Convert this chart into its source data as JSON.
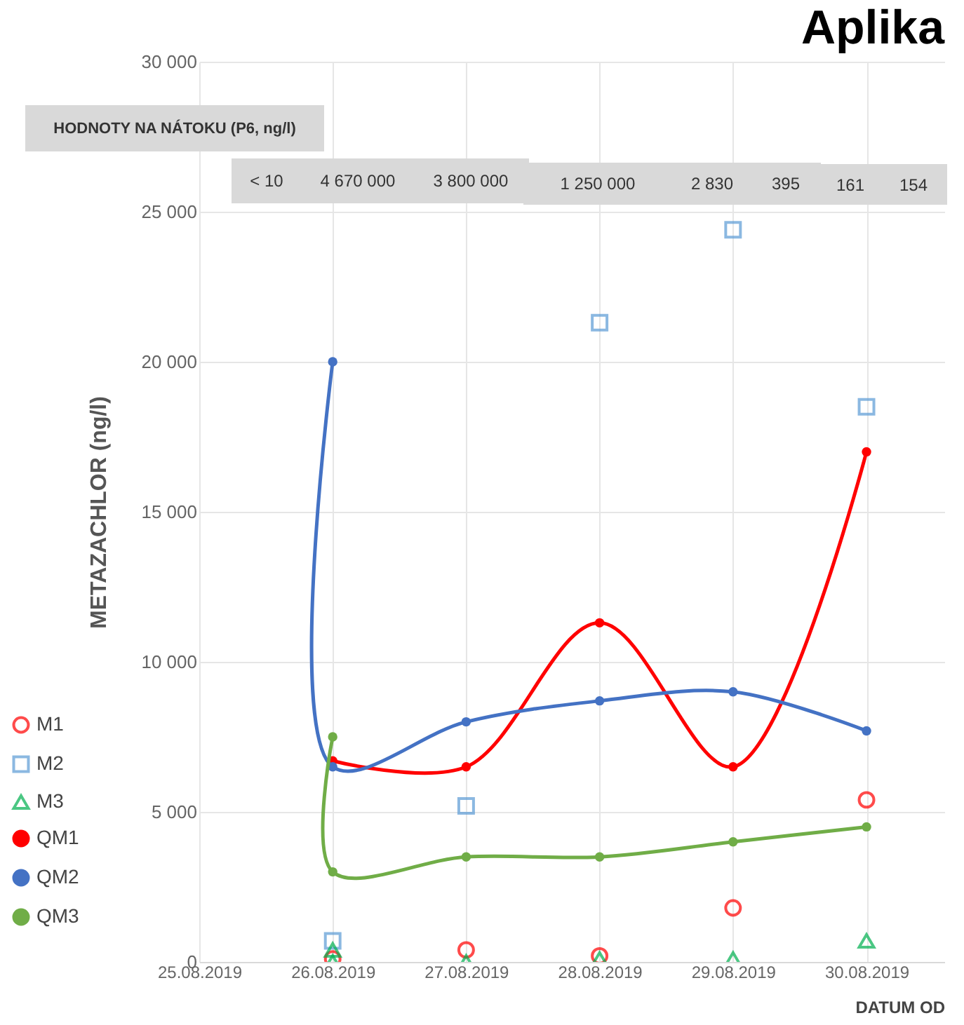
{
  "chart_data": {
    "type": "line",
    "title": "Aplika",
    "xlabel": "DATUM OD",
    "ylabel": "METAZACHLOR (ng/l)",
    "annotations": [
      "HODNOTY NA NÁTOKU (P6, ng/l)",
      "< 10",
      "4 670 000",
      "3 800 000",
      "1 250 000",
      "2 830",
      "395",
      "161",
      "154"
    ],
    "xlim": [
      "2019-08-25",
      "2019-08-30T14:00"
    ],
    "xticks": [
      {
        "value": "2019-08-25",
        "label": "25.08.2019"
      },
      {
        "value": "2019-08-26",
        "label": "26.08.2019"
      },
      {
        "value": "2019-08-27",
        "label": "27.08.2019"
      },
      {
        "value": "2019-08-28",
        "label": "28.08.2019"
      },
      {
        "value": "2019-08-29",
        "label": "29.08.2019"
      },
      {
        "value": "2019-08-30",
        "label": "30.08.2019"
      }
    ],
    "ylim": [
      0,
      30000
    ],
    "yticks": [
      {
        "value": 0,
        "label": "0"
      },
      {
        "value": 5000,
        "label": "5 000"
      },
      {
        "value": 10000,
        "label": "10 000"
      },
      {
        "value": 15000,
        "label": "15 000"
      },
      {
        "value": 20000,
        "label": "20 000"
      },
      {
        "value": 25000,
        "label": "25 000"
      },
      {
        "value": 30000,
        "label": "30 000"
      }
    ],
    "grid": true,
    "legend": "left",
    "series": [
      {
        "name": "M1",
        "type": "scatter",
        "marker": "circle",
        "color": "#ff0000",
        "x": [
          "2019-08-26",
          "2019-08-27",
          "2019-08-28",
          "2019-08-29",
          "2019-08-30"
        ],
        "values": [
          100,
          400,
          200,
          1800,
          5400
        ]
      },
      {
        "name": "M2",
        "type": "scatter",
        "marker": "square",
        "color": "#5b9bd5",
        "x": [
          "2019-08-26",
          "2019-08-27",
          "2019-08-28",
          "2019-08-29",
          "2019-08-30"
        ],
        "values": [
          700,
          5200,
          21300,
          24400,
          18500
        ]
      },
      {
        "name": "M3",
        "type": "scatter",
        "marker": "triangle",
        "color": "#00b050",
        "x": [
          "2019-08-26",
          "2019-08-26",
          "2019-08-27",
          "2019-08-28",
          "2019-08-29",
          "2019-08-30"
        ],
        "values": [
          0,
          400,
          0,
          100,
          100,
          700
        ]
      },
      {
        "name": "QM1",
        "type": "line",
        "marker": "circle",
        "color": "#ff0000",
        "x": [
          "2019-08-26",
          "2019-08-27",
          "2019-08-28",
          "2019-08-29",
          "2019-08-30"
        ],
        "values": [
          6700,
          6500,
          11300,
          6500,
          17000
        ]
      },
      {
        "name": "QM2",
        "type": "line",
        "marker": "circle",
        "color": "#4472c4",
        "x": [
          "2019-08-26",
          "2019-08-26",
          "2019-08-27",
          "2019-08-28",
          "2019-08-29",
          "2019-08-30"
        ],
        "values": [
          20000,
          6500,
          8000,
          8700,
          9000,
          7700
        ]
      },
      {
        "name": "QM3",
        "type": "line",
        "marker": "circle",
        "color": "#70ad47",
        "x": [
          "2019-08-26",
          "2019-08-26",
          "2019-08-27",
          "2019-08-28",
          "2019-08-29",
          "2019-08-30"
        ],
        "values": [
          7500,
          3000,
          3500,
          3500,
          4000,
          4500
        ]
      }
    ]
  }
}
